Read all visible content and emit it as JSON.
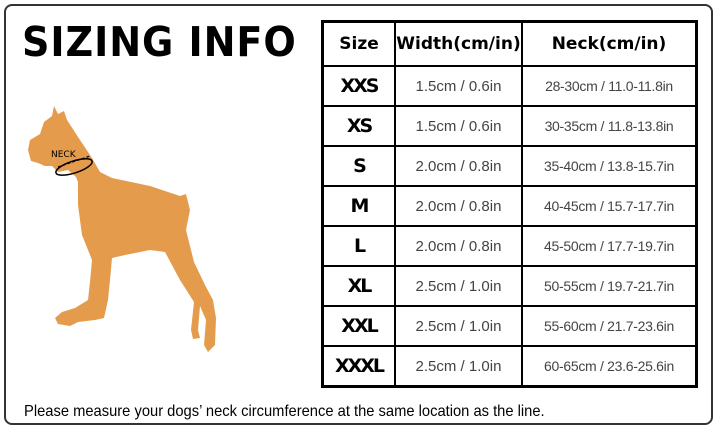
{
  "title": "SIZING INFO",
  "illustration": {
    "label": "NECK",
    "dog_color": "#E49C4C"
  },
  "table": {
    "headers": [
      "Size",
      "Width(cm/in)",
      "Neck(cm/in)"
    ],
    "rows": [
      {
        "size": "XXS",
        "width": "1.5cm / 0.6in",
        "neck": "28-30cm / 11.0-11.8in"
      },
      {
        "size": "XS",
        "width": "1.5cm / 0.6in",
        "neck": "30-35cm / 11.8-13.8in"
      },
      {
        "size": "S",
        "width": "2.0cm / 0.8in",
        "neck": "35-40cm / 13.8-15.7in"
      },
      {
        "size": "M",
        "width": "2.0cm / 0.8in",
        "neck": "40-45cm / 15.7-17.7in"
      },
      {
        "size": "L",
        "width": "2.0cm / 0.8in",
        "neck": "45-50cm / 17.7-19.7in"
      },
      {
        "size": "XL",
        "width": "2.5cm / 1.0in",
        "neck": "50-55cm / 19.7-21.7in"
      },
      {
        "size": "XXL",
        "width": "2.5cm / 1.0in",
        "neck": "55-60cm / 21.7-23.6in"
      },
      {
        "size": "XXXL",
        "width": "2.5cm / 1.0in",
        "neck": "60-65cm / 23.6-25.6in"
      }
    ]
  },
  "note": "Please measure your dogs’   neck circumference at the same location as the line."
}
